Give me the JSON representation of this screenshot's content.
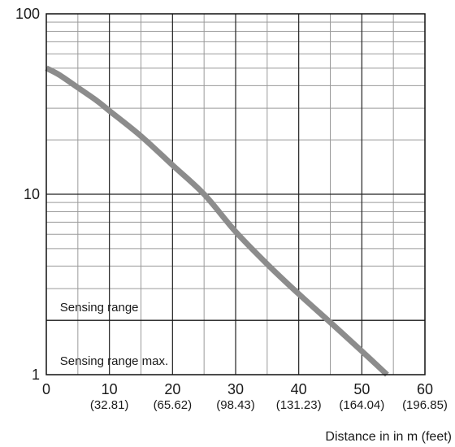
{
  "chart_data": {
    "type": "line",
    "title": "",
    "xlabel": "Distance in in m (feet)",
    "ylabel": "",
    "x_scale": "linear",
    "y_scale": "log",
    "xlim": [
      0,
      60
    ],
    "ylim": [
      1,
      100
    ],
    "grid": true,
    "x_ticks": [
      {
        "value": 0,
        "label": "0",
        "sub": ""
      },
      {
        "value": 10,
        "label": "10",
        "sub": "(32.81)"
      },
      {
        "value": 20,
        "label": "20",
        "sub": "(65.62)"
      },
      {
        "value": 30,
        "label": "30",
        "sub": "(98.43)"
      },
      {
        "value": 40,
        "label": "40",
        "sub": "(131.23)"
      },
      {
        "value": 50,
        "label": "50",
        "sub": "(164.04)"
      },
      {
        "value": 60,
        "label": "60",
        "sub": "(196.85)"
      }
    ],
    "y_ticks": [
      {
        "value": 1,
        "label": "1"
      },
      {
        "value": 10,
        "label": "10"
      },
      {
        "value": 100,
        "label": "100"
      }
    ],
    "series": [
      {
        "color": "#8c8c8c",
        "x": [
          0,
          2,
          5,
          8,
          10,
          15,
          20,
          25,
          30,
          35,
          40,
          45,
          50,
          54
        ],
        "y": [
          50,
          46,
          39,
          33,
          29,
          21,
          14.5,
          10,
          6.2,
          4.1,
          2.8,
          1.95,
          1.35,
          1.0
        ]
      }
    ],
    "reference_lines": [
      {
        "axis": "y",
        "value": 2,
        "color": "#1a1a1a"
      }
    ],
    "annotations": [
      {
        "text": "Sensing range",
        "x": 1,
        "y": 2.25
      },
      {
        "text": "Sensing range max.",
        "x": 1,
        "y": 1.13
      }
    ]
  }
}
